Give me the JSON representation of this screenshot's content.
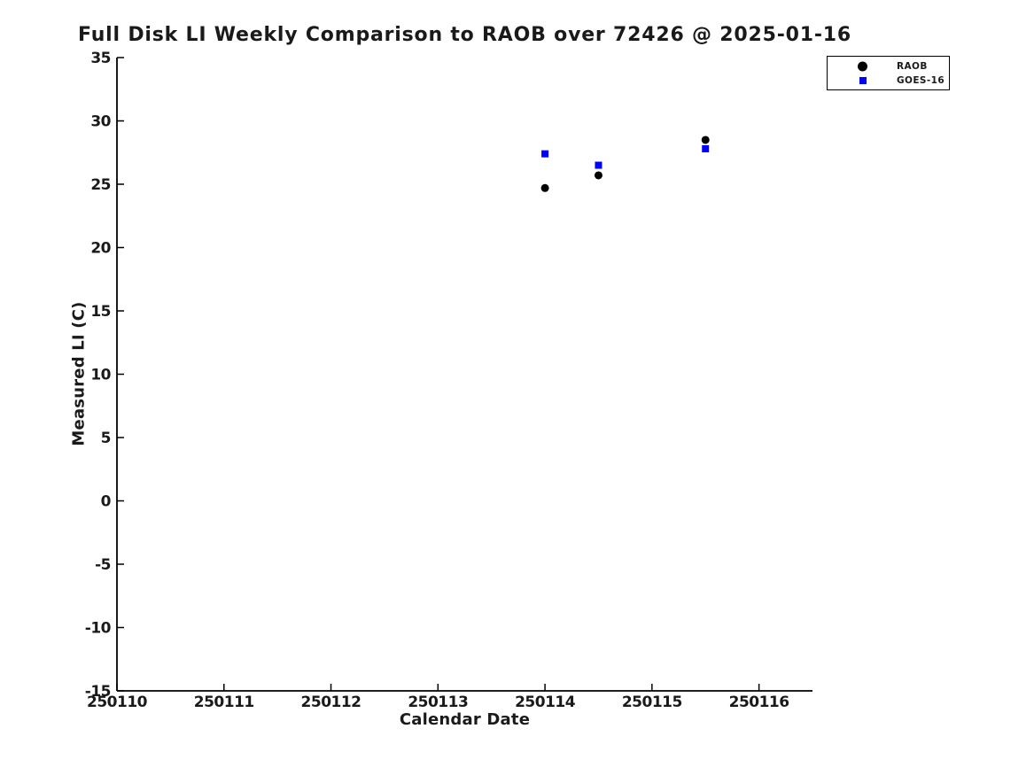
{
  "chart_data": {
    "type": "scatter",
    "title": "Full Disk LI Weekly Comparison to RAOB over 72426 @ 2025-01-16",
    "xlabel": "Calendar Date",
    "ylabel": "Measured LI (C)",
    "xlim": [
      250110,
      250116.5
    ],
    "ylim": [
      -15,
      35
    ],
    "x_tick_values": [
      250110,
      250111,
      250112,
      250113,
      250114,
      250115,
      250116
    ],
    "x_tick_labels": [
      "250110",
      "250111",
      "250112",
      "250113",
      "250114",
      "250115",
      "250116"
    ],
    "y_tick_values": [
      -15,
      -10,
      -5,
      0,
      5,
      10,
      15,
      20,
      25,
      30,
      35
    ],
    "y_tick_labels": [
      "-15",
      "-10",
      "-5",
      "0",
      "5",
      "10",
      "15",
      "20",
      "25",
      "30",
      "35"
    ],
    "grid": false,
    "legend_position": "top-right",
    "series": [
      {
        "name": "RAOB",
        "marker": "circle",
        "color": "#000000",
        "marker_size": 9,
        "points": [
          [
            250114.0,
            24.7
          ],
          [
            250114.5,
            25.7
          ],
          [
            250115.5,
            28.5
          ]
        ]
      },
      {
        "name": "GOES-16",
        "marker": "square",
        "color": "#0000ff",
        "marker_size": 8,
        "points": [
          [
            250114.0,
            27.4
          ],
          [
            250114.5,
            26.5
          ],
          [
            250115.5,
            27.8
          ]
        ]
      }
    ],
    "colors": {
      "axis": "#000000",
      "text": "#1a1a1a",
      "background": "#ffffff",
      "legend_border": "#000000"
    }
  }
}
